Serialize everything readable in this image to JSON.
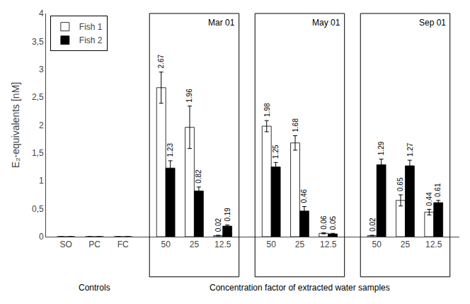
{
  "chart_data": {
    "type": "bar",
    "ylabel": "E₂-equivalents [nM]",
    "xlabel": "Concentration factor of extracted water samples",
    "annotations": [
      "Controls",
      "Mar 01",
      "May 01",
      "Sep 01"
    ],
    "categories": [
      "SO",
      "PC",
      "FC",
      "50",
      "25",
      "12.5",
      "50",
      "25",
      "12.5",
      "50",
      "25",
      "12.5"
    ],
    "series": [
      {
        "name": "Fish 1",
        "color": "#ffffff",
        "values": [
          0,
          0,
          0,
          2.67,
          1.96,
          0.02,
          1.98,
          1.68,
          0.06,
          0.02,
          0.65,
          0.44
        ],
        "errors": [
          0,
          0,
          0,
          0.28,
          0.38,
          0.005,
          0.1,
          0.13,
          0.01,
          0.005,
          0.1,
          0.05
        ],
        "value_labels": [
          null,
          null,
          null,
          "2.67",
          "1.96",
          "0.02",
          "1.98",
          "1.68",
          "0.06",
          "0.02",
          "0.65",
          "0.44"
        ]
      },
      {
        "name": "Fish 2",
        "color": "#000000",
        "values": [
          0,
          0,
          0,
          1.23,
          0.82,
          0.19,
          1.25,
          0.46,
          0.05,
          1.29,
          1.27,
          0.61
        ],
        "errors": [
          0,
          0,
          0,
          0.13,
          0.07,
          0.02,
          0.08,
          0.08,
          0.01,
          0.1,
          0.1,
          0.04
        ],
        "value_labels": [
          null,
          null,
          null,
          "1.23",
          "0.82",
          "0.19",
          "1.25",
          "0.46",
          "0.05",
          "1.29",
          "1.27",
          "0.61"
        ]
      }
    ],
    "ylim": [
      0,
      4
    ],
    "yticks": [
      0,
      {
        "value": 0.5,
        "label": "0,5"
      },
      1,
      {
        "value": 1.5,
        "label": "1,5"
      },
      2,
      {
        "value": 2.5,
        "label": "2,5"
      },
      3,
      {
        "value": 3.5,
        "label": "3,5"
      },
      4
    ],
    "grid": false,
    "legend": "upper left",
    "data_labels": true
  }
}
